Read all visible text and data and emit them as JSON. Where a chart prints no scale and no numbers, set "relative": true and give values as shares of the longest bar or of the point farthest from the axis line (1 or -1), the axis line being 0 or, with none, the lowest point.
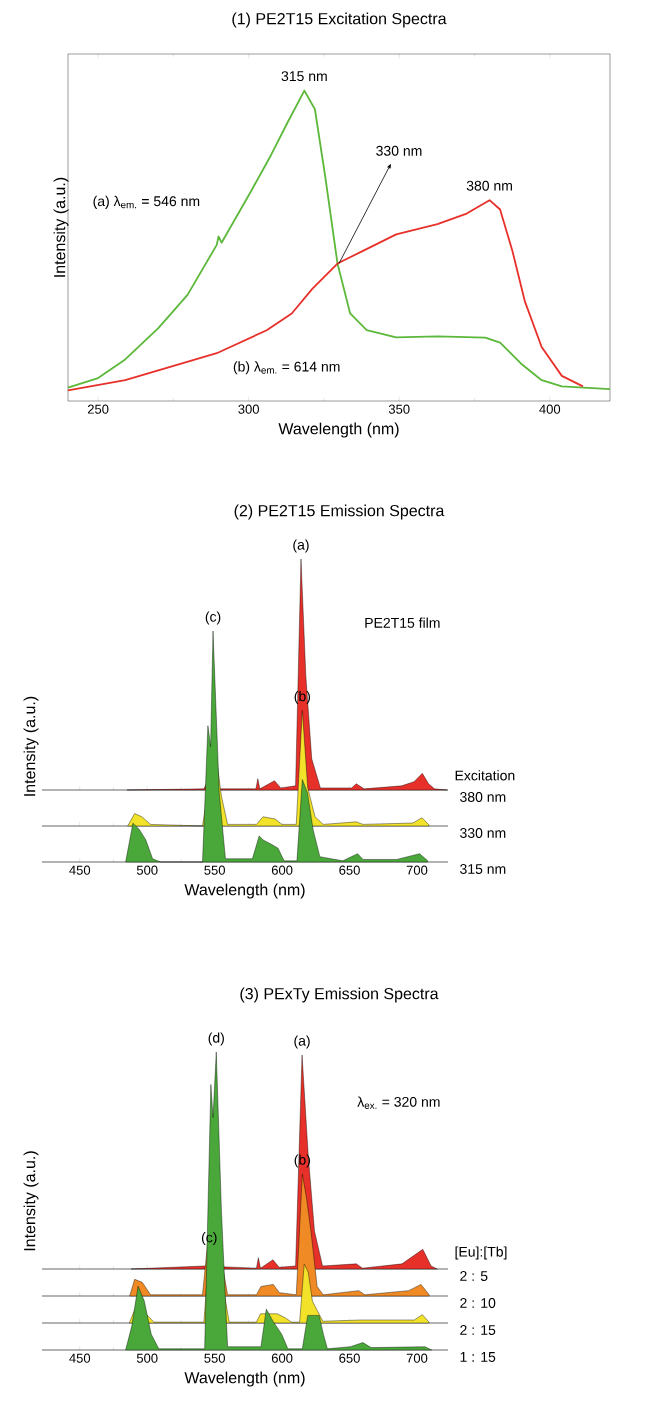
{
  "chart_data": [
    {
      "type": "line",
      "title": "(1) PE2T15 Excitation Spectra",
      "xlabel": "Wavelength (nm)",
      "ylabel": "Intensity (a.u.)",
      "relative": true,
      "xlim": [
        240,
        420
      ],
      "xticks": [
        250,
        300,
        350,
        400
      ],
      "series": [
        {
          "color": "#5cb83a",
          "x": [
            240,
            250,
            259,
            270,
            279.7,
            289.4,
            290,
            291,
            300.5,
            307.4,
            313,
            318.5,
            322,
            325.4,
            329.5,
            333.7,
            339.2,
            349,
            362.7,
            378.6,
            383.5,
            390.4,
            397.3,
            404,
            420
          ],
          "values": [
            0.043,
            0.074,
            0.134,
            0.235,
            0.342,
            0.503,
            0.53,
            0.51,
            0.671,
            0.792,
            0.899,
            1.0,
            0.94,
            0.725,
            0.443,
            0.282,
            0.228,
            0.205,
            0.208,
            0.204,
            0.188,
            0.121,
            0.067,
            0.047,
            0.038
          ]
        },
        {
          "color": "#e8302a",
          "x": [
            240,
            259,
            272.8,
            289.4,
            306,
            314.3,
            321.2,
            329.5,
            337.8,
            349,
            362.7,
            372.4,
            380,
            383.5,
            387.6,
            391.7,
            397.3,
            404,
            411
          ],
          "values": [
            0.034,
            0.067,
            0.107,
            0.154,
            0.228,
            0.282,
            0.362,
            0.443,
            0.483,
            0.537,
            0.57,
            0.604,
            0.647,
            0.617,
            0.483,
            0.322,
            0.174,
            0.081,
            0.047
          ]
        }
      ],
      "annotations": [
        {
          "text": "315 nm",
          "x": 318.5,
          "y": 1.0
        },
        {
          "text": "330 nm",
          "x": 330,
          "y": 0.443
        },
        {
          "text": "380 nm",
          "x": 380,
          "y": 0.647
        },
        "(a) λ$_{em.}$ = 546 nm",
        "(b) λ$_{em.}$ = 614 nm"
      ]
    },
    {
      "type": "area",
      "title": "(2) PE2T15 Emission Spectra",
      "relative": true,
      "xlim": [
        422,
        723
      ],
      "xticks": [
        450,
        500,
        550,
        600,
        650,
        700
      ],
      "tick_labels": false,
      "legend_title": "Excitation",
      "series": [
        {
          "name": "380 nm",
          "color": "#e8302a",
          "x": [
            485,
            542,
            545,
            549,
            554,
            580.6,
            582,
            583.5,
            594.4,
            599,
            610,
            614,
            617.6,
            622,
            628.4,
            651.5,
            655,
            660.8,
            688.6,
            697.8,
            704,
            708.6,
            713,
            722.5
          ],
          "values": [
            0,
            0.005,
            0.04,
            null,
            0.005,
            0.005,
            0.049,
            0.005,
            0.04,
            0.009,
            0.018,
            1.0,
            0.495,
            0.135,
            0.009,
            0.009,
            0.027,
            0.005,
            0.018,
            0.036,
            0.072,
            0.027,
            0.005,
            0
          ]
        }
      ],
      "annotations": [
        {
          "text": "(a)",
          "x": 614,
          "y": 1.0
        },
        "PE2T15 film"
      ]
    },
    {
      "type": "area",
      "relative": true,
      "xlim": [
        422,
        723
      ],
      "xticks": [
        450,
        500,
        550,
        600,
        650,
        700
      ],
      "tick_labels": false,
      "series": [
        {
          "name": "330 nm",
          "color": "#f2e22a",
          "x": [
            485.5,
            490.7,
            496,
            502.5,
            541,
            545.7,
            550.3,
            555,
            559.6,
            581,
            585.8,
            595,
            599.7,
            610.5,
            615,
            619,
            624.4,
            630.5,
            655,
            660,
            697,
            703.7,
            709
          ],
          "values": [
            0,
            0.108,
            0.08,
            0.014,
            0,
            null,
            0.674,
            0.26,
            0.014,
            0.014,
            0.08,
            0.06,
            0.014,
            0.014,
            1.0,
            0.332,
            0.08,
            0.014,
            0.036,
            0.014,
            0.026,
            0.072,
            0.008
          ]
        }
      ],
      "annotations": [
        {
          "text": "(b)",
          "x": 615,
          "y": 1.0
        }
      ]
    },
    {
      "type": "area",
      "xlabel": "Wavelength (nm)",
      "ylabel": "Intensity (a.u.)",
      "relative": true,
      "xlim": [
        422,
        723
      ],
      "xticks": [
        450,
        500,
        550,
        600,
        650,
        700
      ],
      "series": [
        {
          "name": "315 nm",
          "color": "#4aa83a",
          "x": [
            484,
            489.4,
            494.3,
            499,
            504,
            510,
            541,
            545,
            547,
            548.8,
            553.4,
            558,
            578,
            583,
            586,
            592,
            597,
            601.5,
            611,
            615,
            618.8,
            623,
            628,
            645,
            656,
            660,
            685,
            702,
            708
          ],
          "values": [
            0,
            0.168,
            0.14,
            0.095,
            0.014,
            0,
            0,
            0.59,
            0.5,
            1.0,
            0.3,
            0.014,
            0.014,
            0.113,
            0.095,
            0.077,
            0.06,
            0.005,
            0.005,
            0.357,
            0.3,
            0.14,
            0.023,
            0.005,
            0.036,
            0.011,
            0.011,
            0.036,
            0.005
          ]
        }
      ],
      "annotations": [
        {
          "text": "(c)",
          "x": 548.8,
          "y": 1.0
        }
      ]
    },
    {
      "type": "area",
      "title": "(3) PExTy Emission Spectra",
      "relative": true,
      "xlim": [
        422,
        723
      ],
      "xticks": [
        450,
        500,
        550,
        600,
        650,
        700
      ],
      "tick_labels": false,
      "legend_title": "[Eu]:[Tb]",
      "series": [
        {
          "name": "2 : 5",
          "color": "#e8302a",
          "x": [
            488,
            542.3,
            548.5,
            554.6,
            581,
            582.4,
            584,
            593.2,
            597.8,
            610,
            614.8,
            619.4,
            624,
            630,
            655,
            659.6,
            688.9,
            704.3,
            710.5,
            715
          ],
          "values": [
            0,
            0.014,
            null,
            null,
            0.004,
            0.053,
            0.004,
            0.043,
            0.008,
            0.014,
            1.0,
            0.529,
            0.178,
            0.014,
            0.024,
            0.004,
            0.024,
            0.092,
            0.014,
            0
          ]
        }
      ],
      "annotations": [
        {
          "text": "(a)",
          "x": 614.8,
          "y": 1.0
        },
        "λ$_{ex.}$ = 320 nm"
      ]
    },
    {
      "type": "area",
      "relative": true,
      "xlim": [
        422,
        723
      ],
      "xticks": [
        450,
        500,
        550,
        600,
        650,
        700
      ],
      "tick_labels": false,
      "series": [
        {
          "name": "2 : 10",
          "color": "#f08a24",
          "x": [
            487,
            490.7,
            496.3,
            502.5,
            541,
            545.7,
            547.2,
            550.3,
            555,
            559.6,
            581,
            584.3,
            593.5,
            598,
            610.5,
            615,
            618,
            621.3,
            626,
            630.5,
            656.8,
            661.4,
            693.8,
            703,
            709
          ],
          "values": [
            0,
            0.137,
            0.112,
            0.01,
            0.01,
            0.537,
            null,
            null,
            0.3,
            0.01,
            0.01,
            0.078,
            0.095,
            0.027,
            0.01,
            1.0,
            0.81,
            0.539,
            0.078,
            0.01,
            0.044,
            0.01,
            0.044,
            0.095,
            0.01
          ]
        }
      ],
      "annotations": [
        {
          "text": "(b)",
          "x": 615,
          "y": 1.0
        }
      ]
    },
    {
      "type": "area",
      "relative": true,
      "xlim": [
        422,
        723
      ],
      "xticks": [
        450,
        500,
        550,
        600,
        650,
        700
      ],
      "tick_labels": false,
      "series": [
        {
          "name": "2 : 15",
          "color": "#f2e22a",
          "x": [
            486.7,
            491.4,
            497.5,
            505,
            542,
            546,
            548,
            550.6,
            556,
            560.8,
            580.9,
            584,
            596.3,
            602.5,
            607,
            613,
            616.4,
            619.4,
            622.5,
            630.2,
            658,
            698,
            704,
            709
          ],
          "values": [
            0,
            0.217,
            0.158,
            0.012,
            0.012,
            1.0,
            null,
            null,
            0.534,
            0.012,
            0.012,
            0.129,
            0.129,
            0.071,
            0.012,
            0.012,
            0.825,
            0.708,
            0.305,
            0.025,
            0.042,
            0.042,
            0.117,
            0.012
          ]
        }
      ],
      "annotations": [
        {
          "text": "(c)",
          "x": 546,
          "y": 1.0
        }
      ]
    },
    {
      "type": "area",
      "xlabel": "Wavelength (nm)",
      "ylabel": "Intensity (a.u.)",
      "relative": true,
      "xlim": [
        422,
        723
      ],
      "xticks": [
        450,
        500,
        550,
        600,
        650,
        700
      ],
      "series": [
        {
          "name": "1 : 15",
          "color": "#4aa83a",
          "x": [
            484,
            488.6,
            493.2,
            497.8,
            503,
            508.6,
            542.6,
            547.2,
            548.8,
            551.2,
            555,
            559.6,
            584.3,
            588.3,
            593.5,
            599.7,
            604.3,
            615,
            619,
            627.5,
            630.6,
            633.6,
            650.6,
            659.9,
            666,
            706,
            710.8
          ],
          "values": [
            0,
            0.081,
            0.214,
            0.165,
            0.053,
            0.004,
            0.004,
            0.891,
            0.78,
            1.0,
            0.47,
            0.011,
            0.011,
            0.137,
            0.095,
            0.053,
            0.004,
            0.004,
            0.116,
            0.116,
            0.053,
            0.004,
            0.011,
            0.025,
            0.008,
            0.011,
            0
          ]
        }
      ],
      "annotations": [
        {
          "text": "(d)",
          "x": 551.2,
          "y": 1.0
        }
      ]
    }
  ]
}
